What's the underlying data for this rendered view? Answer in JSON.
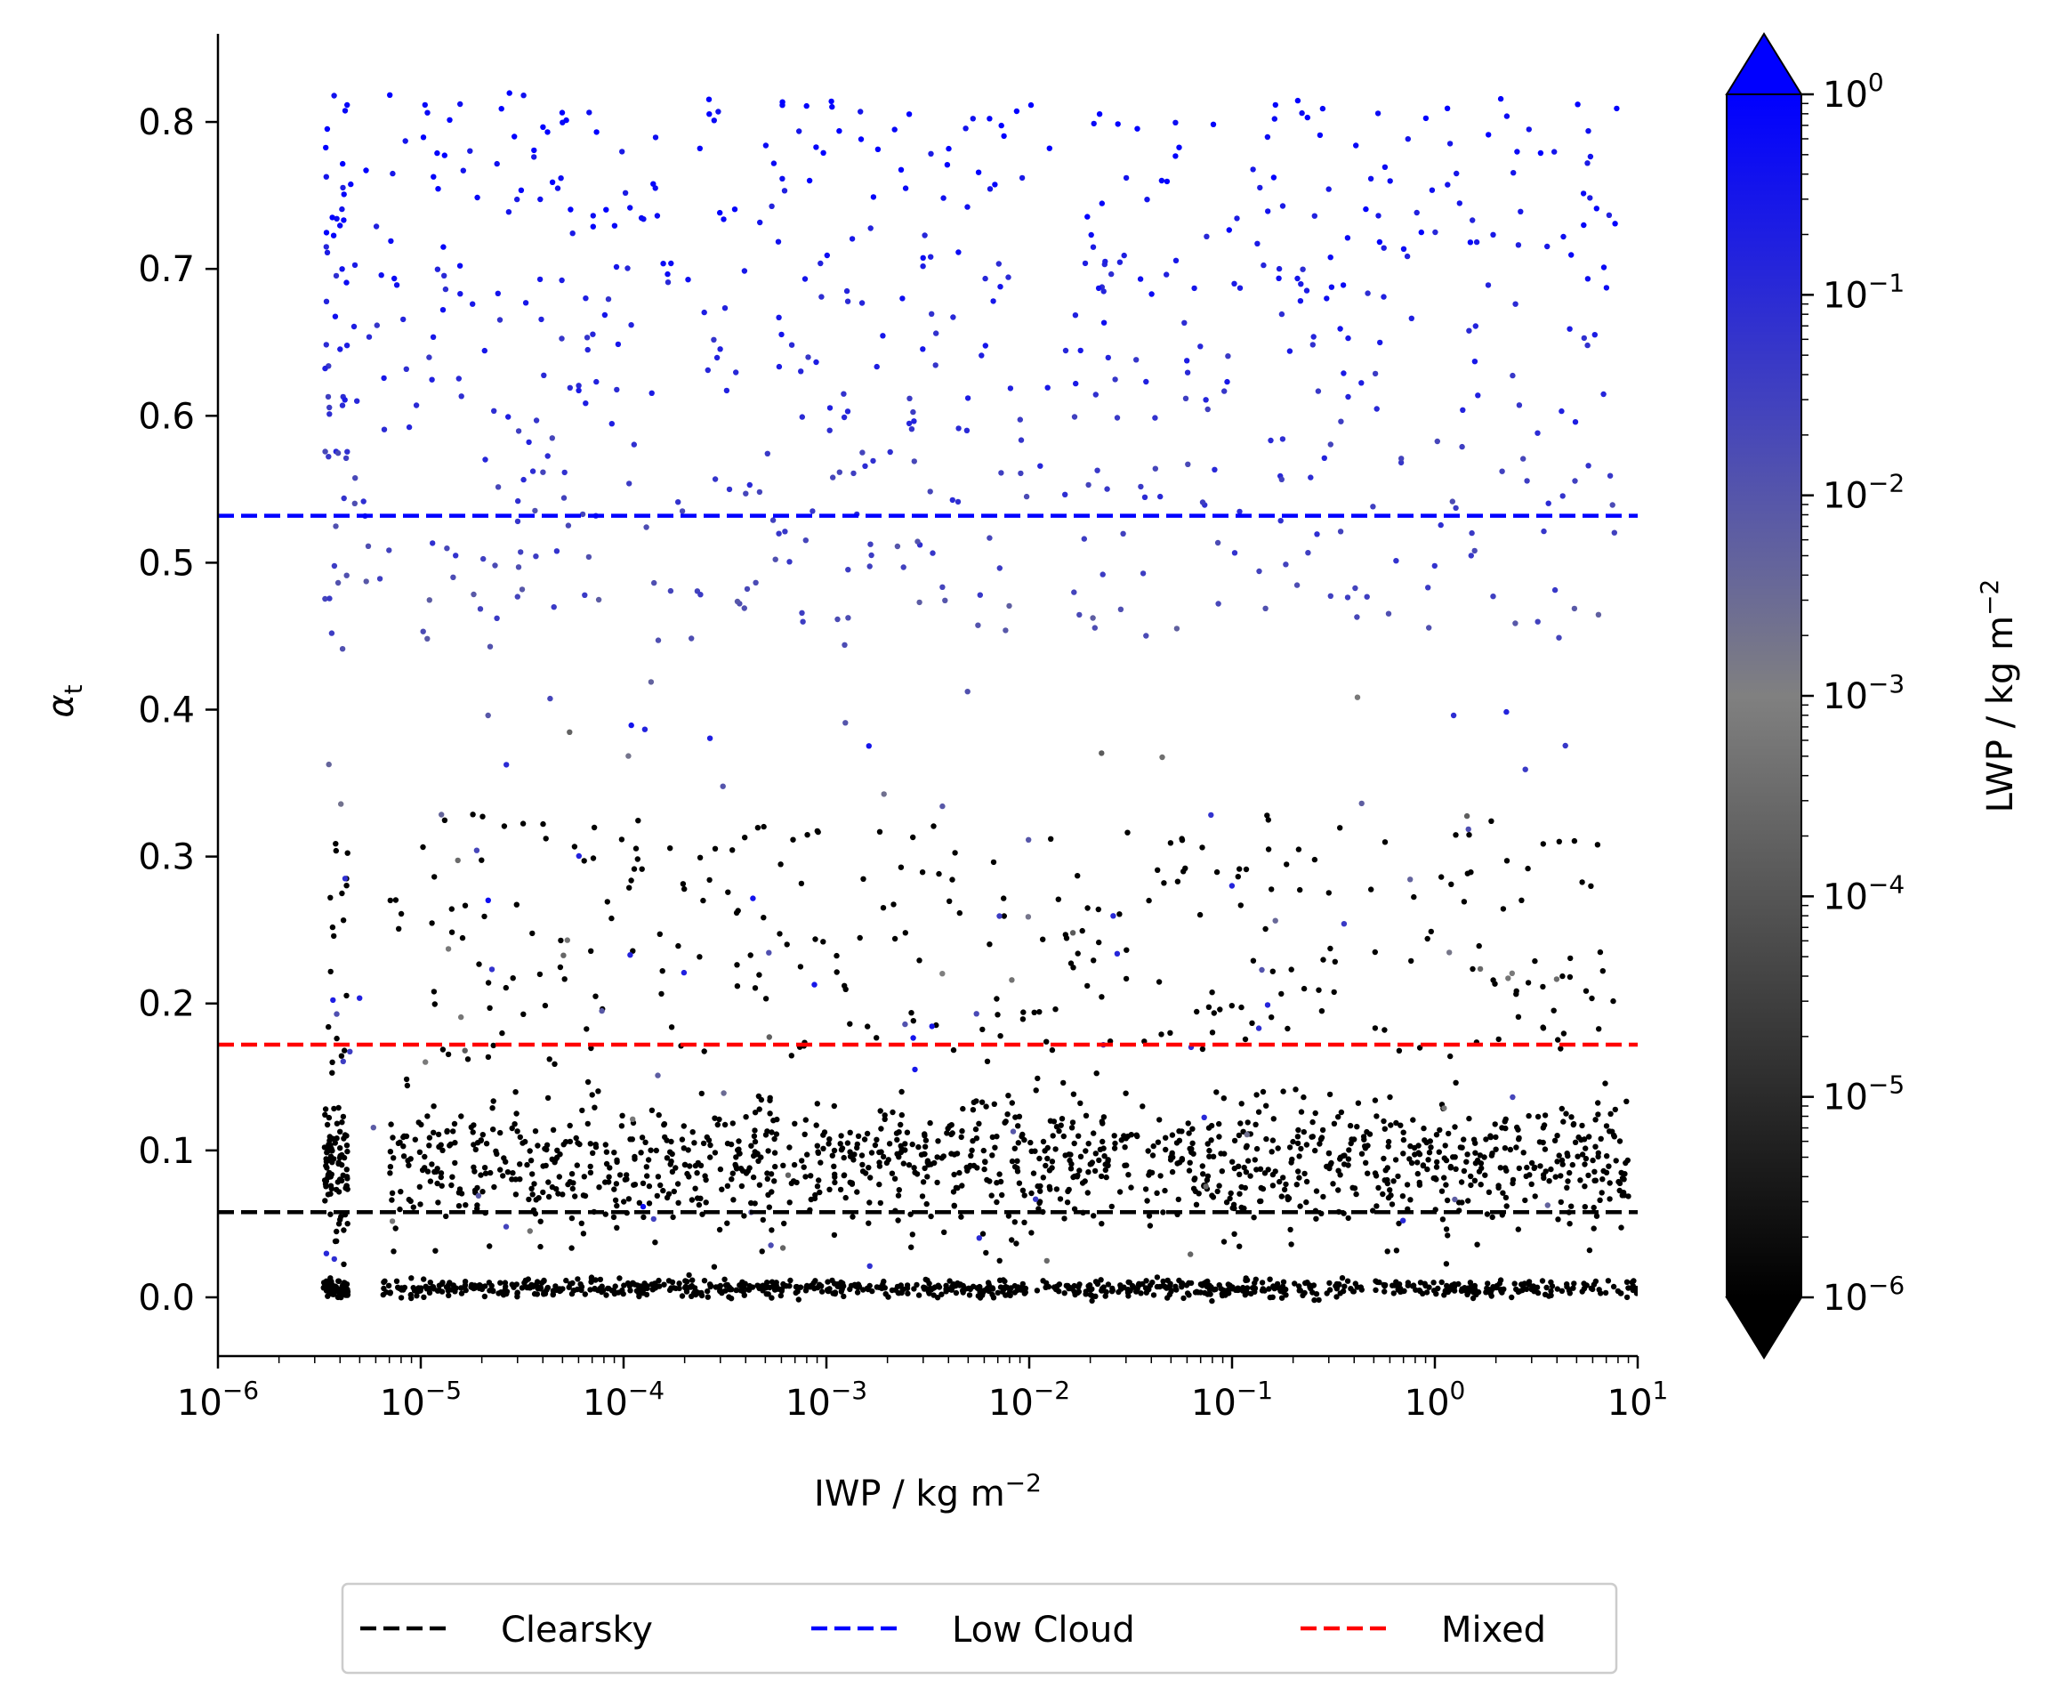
{
  "chart_data": {
    "type": "scatter",
    "title": "",
    "xlabel": "IWP / kg m",
    "xlabel_sup": "−2",
    "ylabel": "α",
    "ylabel_sub": "t",
    "xscale": "log",
    "xlim": [
      1e-06,
      10
    ],
    "ylim": [
      -0.04,
      0.86
    ],
    "x_ticks": [
      {
        "value": 1e-06,
        "base": "10",
        "exp": "−6"
      },
      {
        "value": 1e-05,
        "base": "10",
        "exp": "−5"
      },
      {
        "value": 0.0001,
        "base": "10",
        "exp": "−4"
      },
      {
        "value": 0.001,
        "base": "10",
        "exp": "−3"
      },
      {
        "value": 0.01,
        "base": "10",
        "exp": "−2"
      },
      {
        "value": 0.1,
        "base": "10",
        "exp": "−1"
      },
      {
        "value": 1,
        "base": "10",
        "exp": "0"
      },
      {
        "value": 10,
        "base": "10",
        "exp": "1"
      }
    ],
    "y_ticks": [
      {
        "value": 0.0,
        "label": "0.0"
      },
      {
        "value": 0.1,
        "label": "0.1"
      },
      {
        "value": 0.2,
        "label": "0.2"
      },
      {
        "value": 0.3,
        "label": "0.3"
      },
      {
        "value": 0.4,
        "label": "0.4"
      },
      {
        "value": 0.5,
        "label": "0.5"
      },
      {
        "value": 0.6,
        "label": "0.6"
      },
      {
        "value": 0.7,
        "label": "0.7"
      },
      {
        "value": 0.8,
        "label": "0.8"
      }
    ],
    "grid": false,
    "hlines": [
      {
        "name": "Clearsky",
        "y": 0.058,
        "color": "#000000",
        "dash": "dashed"
      },
      {
        "name": "Low Cloud",
        "y": 0.532,
        "color": "#0000ff",
        "dash": "dashed"
      },
      {
        "name": "Mixed",
        "y": 0.172,
        "color": "#ff0000",
        "dash": "dashed"
      }
    ],
    "legend": {
      "placement": "bottom-center, below axes",
      "entries": [
        "Clearsky",
        "Low Cloud",
        "Mixed"
      ]
    },
    "colorbar": {
      "label": "LWP / kg m",
      "label_sup": "−2",
      "scale": "log",
      "range": [
        1e-06,
        1
      ],
      "extend": "both",
      "colors": [
        "#000000",
        "#808080",
        "#0000ff"
      ],
      "ticks": [
        {
          "value": 1e-06,
          "base": "10",
          "exp": "−6"
        },
        {
          "value": 1e-05,
          "base": "10",
          "exp": "−5"
        },
        {
          "value": 0.0001,
          "base": "10",
          "exp": "−4"
        },
        {
          "value": 0.001,
          "base": "10",
          "exp": "−3"
        },
        {
          "value": 0.01,
          "base": "10",
          "exp": "−2"
        },
        {
          "value": 0.1,
          "base": "10",
          "exp": "−1"
        },
        {
          "value": 1,
          "base": "10",
          "exp": "0"
        }
      ]
    },
    "point_clusters": [
      {
        "description_x_range": [
          3.5e-06,
          10
        ],
        "y_range": [
          0.0,
          0.012
        ],
        "lwp": "≤1e-6",
        "count": 900
      },
      {
        "description_x_range": [
          3.5e-06,
          9
        ],
        "y_range": [
          0.06,
          0.16
        ],
        "lwp": "≤1e-6",
        "count": 1300
      },
      {
        "description_x_range": [
          3.5e-06,
          8
        ],
        "y_range": [
          0.16,
          0.33
        ],
        "lwp": "≤1e-6",
        "count": 300
      },
      {
        "description_x_range": [
          3.5e-06,
          8
        ],
        "y_range": [
          0.44,
          0.82
        ],
        "lwp": "1e-3 to 1",
        "count": 650
      }
    ]
  }
}
